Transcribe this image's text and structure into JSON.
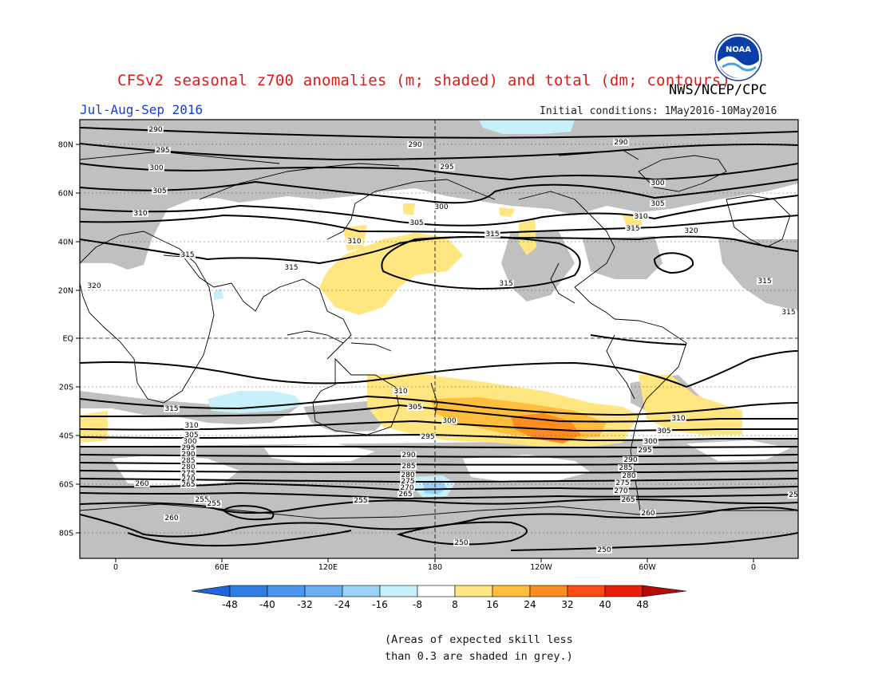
{
  "header": {
    "title": "CFSv2 seasonal z700 anomalies (m; shaded) and total (dm; contours)",
    "agency": "NWS/NCEP/CPC",
    "season": "Jul-Aug-Sep 2016",
    "initial_conditions": "Initial conditions: 1May2016-10May2016",
    "logo_text": "NOAA"
  },
  "map": {
    "lat_ticks": [
      "80N",
      "60N",
      "40N",
      "20N",
      "EQ",
      "20S",
      "40S",
      "60S",
      "80S"
    ],
    "lon_ticks": [
      "0",
      "60E",
      "120E",
      "180",
      "120W",
      "60W",
      "0"
    ],
    "contour_labels": [
      "290",
      "295",
      "300",
      "305",
      "310",
      "315",
      "320",
      "290",
      "295",
      "300",
      "305",
      "310",
      "315",
      "290",
      "300",
      "305",
      "310",
      "315",
      "320",
      "315",
      "315",
      "315",
      "315",
      "310",
      "305",
      "300",
      "295",
      "290",
      "285",
      "280",
      "275",
      "270",
      "265",
      "260",
      "255",
      "250",
      "315",
      "310",
      "305",
      "300",
      "295",
      "290",
      "285",
      "280",
      "275",
      "270",
      "265",
      "260",
      "255",
      "310",
      "305",
      "300",
      "295",
      "290",
      "285",
      "280",
      "275",
      "270",
      "265",
      "260",
      "255",
      "250",
      "25"
    ]
  },
  "colorbar": {
    "labels": [
      "-48",
      "-40",
      "-32",
      "-24",
      "-16",
      "-8",
      "8",
      "16",
      "24",
      "32",
      "40",
      "48"
    ],
    "colors": [
      "#1e64dc",
      "#2e7ee6",
      "#4b96ee",
      "#6aaef2",
      "#98d2f6",
      "#c8f0fa",
      "#ffffff",
      "#ffe680",
      "#ffbe3c",
      "#ff8c1e",
      "#ff4b14",
      "#e61e0a",
      "#b40a0a"
    ]
  },
  "footer": {
    "note_line1": "(Areas of expected skill less",
    "note_line2": "than 0.3 are shaded in grey.)"
  }
}
